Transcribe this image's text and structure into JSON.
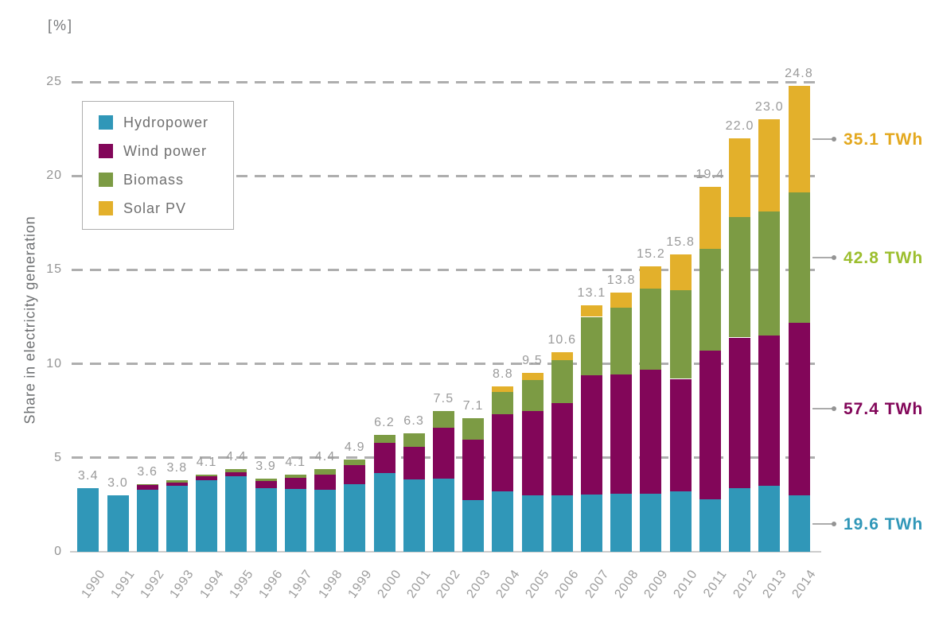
{
  "unit_label": "[%]",
  "y_axis_title": "Share in electricity generation",
  "y_ticks": [
    25,
    20,
    15,
    10,
    5,
    0
  ],
  "legend": {
    "items": [
      {
        "label": "Hydropower",
        "color": "#3097b8"
      },
      {
        "label": "Wind power",
        "color": "#820659"
      },
      {
        "label": "Biomass",
        "color": "#7c9b44"
      },
      {
        "label": "Solar PV",
        "color": "#e3b02b"
      }
    ]
  },
  "annotations": [
    {
      "label": "35.1 TWh",
      "series": "Solar PV",
      "color": "#e3a81e"
    },
    {
      "label": "42.8 TWh",
      "series": "Biomass",
      "color": "#9cbe2e"
    },
    {
      "label": "57.4 TWh",
      "series": "Wind power",
      "color": "#820659"
    },
    {
      "label": "19.6 TWh",
      "series": "Hydropower",
      "color": "#3097b8"
    }
  ],
  "chart_data": {
    "type": "bar",
    "stacked": true,
    "title": "",
    "xlabel": "",
    "ylabel": "Share in electricity generation",
    "y_unit": "%",
    "ylim": [
      0,
      25
    ],
    "grid": "dashed-horizontal",
    "legend_position": "upper-left",
    "categories": [
      "1990",
      "1991",
      "1992",
      "1993",
      "1994",
      "1995",
      "1996",
      "1997",
      "1998",
      "1999",
      "2000",
      "2001",
      "2002",
      "2003",
      "2004",
      "2005",
      "2006",
      "2007",
      "2008",
      "2009",
      "2010",
      "2011",
      "2012",
      "2013",
      "2014"
    ],
    "series": [
      {
        "name": "Hydropower",
        "color": "#3097b8",
        "values": [
          3.4,
          3.0,
          3.3,
          3.5,
          3.8,
          4.0,
          3.4,
          3.35,
          3.3,
          3.6,
          4.2,
          3.85,
          3.9,
          2.75,
          3.2,
          3.0,
          3.0,
          3.05,
          3.1,
          3.1,
          3.2,
          2.8,
          3.4,
          3.5,
          3.0
        ]
      },
      {
        "name": "Wind power",
        "color": "#820659",
        "values": [
          0,
          0,
          0.25,
          0.2,
          0.2,
          0.25,
          0.35,
          0.6,
          0.8,
          1.0,
          1.6,
          1.75,
          2.7,
          3.2,
          4.1,
          4.5,
          4.9,
          6.35,
          6.35,
          6.6,
          6.0,
          7.9,
          8.0,
          8.0,
          9.2
        ]
      },
      {
        "name": "Biomass",
        "color": "#7c9b44",
        "values": [
          0,
          0,
          0.05,
          0.1,
          0.1,
          0.15,
          0.15,
          0.15,
          0.3,
          0.3,
          0.4,
          0.7,
          0.9,
          1.15,
          1.2,
          1.65,
          2.3,
          3.1,
          3.55,
          4.3,
          4.7,
          5.4,
          6.4,
          6.6,
          6.9
        ]
      },
      {
        "name": "Solar PV",
        "color": "#e3b02b",
        "values": [
          0,
          0,
          0,
          0,
          0,
          0,
          0,
          0,
          0,
          0,
          0,
          0,
          0,
          0,
          0.3,
          0.35,
          0.4,
          0.6,
          0.8,
          1.2,
          1.9,
          3.3,
          4.2,
          4.9,
          5.7
        ]
      }
    ],
    "totals": [
      "3.4",
      "3.0",
      "3.6",
      "3.8",
      "4.1",
      "4.4",
      "3.9",
      "4.1",
      "4.4",
      "4.9",
      "6.2",
      "6.3",
      "7.5",
      "7.1",
      "8.8",
      "9.5",
      "10.6",
      "13.1",
      "13.8",
      "15.2",
      "15.8",
      "19.4",
      "22.0",
      "23.0",
      "24.8"
    ],
    "right_labels_2014_twh": {
      "Hydropower": "19.6 TWh",
      "Wind power": "57.4 TWh",
      "Biomass": "42.8 TWh",
      "Solar PV": "35.1 TWh"
    }
  }
}
